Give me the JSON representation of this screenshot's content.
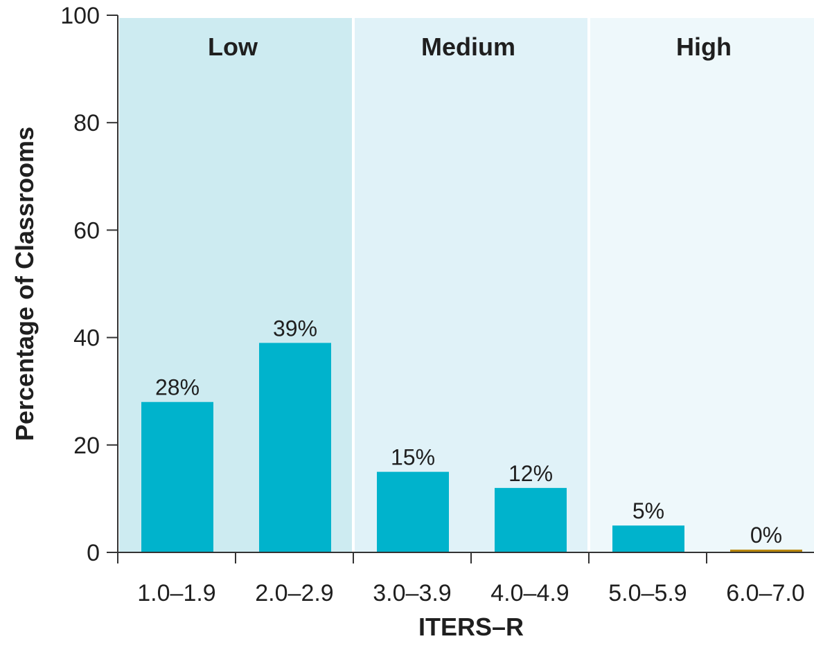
{
  "chart_data": {
    "type": "bar",
    "categories": [
      "1.0–1.9",
      "2.0–2.9",
      "3.0–3.9",
      "4.0–4.9",
      "5.0–5.9",
      "6.0–7.0"
    ],
    "values": [
      28,
      39,
      15,
      12,
      5,
      0
    ],
    "data_labels": [
      "28%",
      "39%",
      "15%",
      "12%",
      "5%",
      "0%"
    ],
    "xlabel": "ITERS–R",
    "ylabel": "Percentage of Classrooms",
    "ylim": [
      0,
      100
    ],
    "yticks": [
      0,
      20,
      40,
      60,
      80,
      100
    ],
    "bands": [
      {
        "label": "Low",
        "categories": [
          "1.0–1.9",
          "2.0–2.9"
        ]
      },
      {
        "label": "Medium",
        "categories": [
          "3.0–3.9",
          "4.0–4.9"
        ]
      },
      {
        "label": "High",
        "categories": [
          "5.0–5.9",
          "6.0–7.0"
        ]
      }
    ],
    "grid": false
  },
  "colors": {
    "bar": "#00b3cc",
    "bar_zero": "#b8860b",
    "band_low": "#cdebf1",
    "band_medium": "#e0f2f8",
    "band_high": "#eef8fb",
    "axis": "#333333"
  }
}
